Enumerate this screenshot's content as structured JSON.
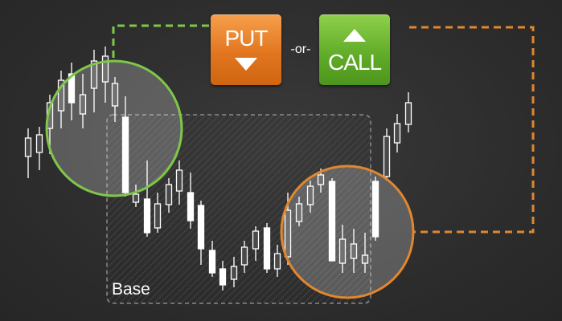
{
  "buttons": {
    "put_label": "PUT",
    "call_label": "CALL",
    "separator": "-or-"
  },
  "zone": {
    "label": "Base"
  },
  "colors": {
    "put": "#e2761f",
    "call": "#62ad2a",
    "green_circle": "#7fc64a",
    "orange_circle": "#e0872f",
    "candle": "#ffffff"
  },
  "icons": {
    "put": "arrow-down-icon",
    "call": "arrow-up-icon"
  }
}
